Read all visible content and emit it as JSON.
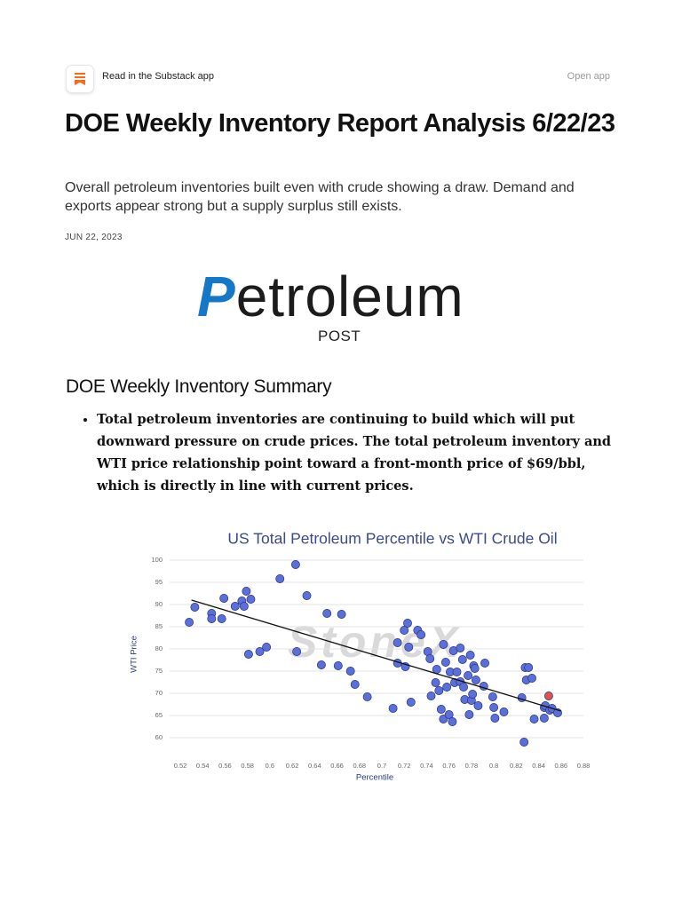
{
  "header": {
    "banner": "Read in the Substack app",
    "open_app": "Open app"
  },
  "post": {
    "title": "DOE Weekly Inventory Report Analysis 6/22/23",
    "subtitle": "Overall petroleum inventories built even with crude showing a draw. Demand and exports appear strong but a supply surplus still exists.",
    "date": "JUN 22, 2023",
    "logo": {
      "name": "Petroleum",
      "tagline": "POST"
    },
    "section_heading": "DOE Weekly Inventory Summary",
    "bullets": [
      "Total petroleum inventories are continuing to build which will put downward pressure on crude prices. The total petroleum inventory and WTI price relationship point toward a front-month price of $69/bbl, which is directly in line with current prices."
    ]
  },
  "chart_data": {
    "type": "scatter",
    "title": "US Total Petroleum Percentile vs WTI Crude Oil",
    "x_label": "Percentile",
    "y_label": "WTI Price",
    "watermark": "StoneX",
    "xlim": [
      0.52,
      0.88
    ],
    "ylim": [
      55,
      100
    ],
    "xticks": [
      0.52,
      0.54,
      0.56,
      0.58,
      0.6,
      0.62,
      0.64,
      0.66,
      0.68,
      0.7,
      0.72,
      0.74,
      0.76,
      0.78,
      0.8,
      0.82,
      0.84,
      0.86,
      0.88
    ],
    "yticks": [
      60,
      65,
      70,
      75,
      80,
      85,
      90,
      95,
      100
    ],
    "grid": true,
    "series": [
      {
        "color": "#5b6fdb",
        "x": [
          0.528,
          0.533,
          0.548,
          0.548,
          0.557,
          0.559,
          0.569,
          0.575,
          0.579,
          0.577,
          0.583,
          0.581,
          0.591,
          0.597,
          0.609,
          0.623,
          0.624,
          0.633,
          0.646,
          0.651,
          0.661,
          0.664,
          0.672,
          0.676,
          0.687,
          0.71,
          0.714,
          0.714,
          0.72,
          0.723,
          0.721,
          0.724,
          0.726,
          0.732,
          0.735,
          0.741,
          0.743,
          0.744,
          0.748,
          0.749,
          0.751,
          0.753,
          0.755,
          0.755,
          0.757,
          0.758,
          0.76,
          0.761,
          0.763,
          0.764,
          0.765,
          0.767,
          0.77,
          0.77,
          0.772,
          0.773,
          0.774,
          0.777,
          0.778,
          0.779,
          0.78,
          0.781,
          0.782,
          0.783,
          0.784,
          0.786,
          0.791,
          0.792,
          0.799,
          0.801,
          0.8,
          0.809,
          0.825,
          0.827,
          0.828,
          0.831,
          0.829,
          0.834,
          0.836,
          0.845,
          0.845,
          0.846,
          0.85,
          0.852,
          0.857
        ],
        "values": [
          86,
          89.4,
          88,
          86.8,
          86.8,
          91.4,
          89.6,
          90.8,
          93,
          89.6,
          91.2,
          78.8,
          79.4,
          80.4,
          95.8,
          99,
          79.4,
          92,
          76.4,
          88,
          76.2,
          87.8,
          75,
          72,
          69.2,
          66.6,
          81.4,
          76.8,
          84.2,
          85.8,
          76,
          80.4,
          68,
          84.2,
          83.2,
          79.4,
          77.8,
          69.4,
          72.4,
          75.4,
          70.6,
          66.4,
          81,
          64.2,
          77,
          71.4,
          65.2,
          74.8,
          63.6,
          79.6,
          72.4,
          74.8,
          80.2,
          72.6,
          77.6,
          71.4,
          68.6,
          74,
          65.2,
          78.6,
          68.4,
          69.8,
          76.2,
          75.6,
          73,
          67.2,
          71.6,
          76.8,
          69.2,
          64.4,
          66.8,
          65.8,
          69,
          59,
          75.8,
          75.8,
          73,
          73.4,
          64.2,
          64.4,
          66.8,
          67.2,
          66.2,
          66.6,
          65.6
        ]
      },
      {
        "color": "#d9534f",
        "x": [
          0.849
        ],
        "values": [
          69.4
        ]
      }
    ],
    "trendline": {
      "color": "#111111",
      "x": [
        0.53,
        0.86
      ],
      "values": [
        91,
        66
      ]
    }
  }
}
